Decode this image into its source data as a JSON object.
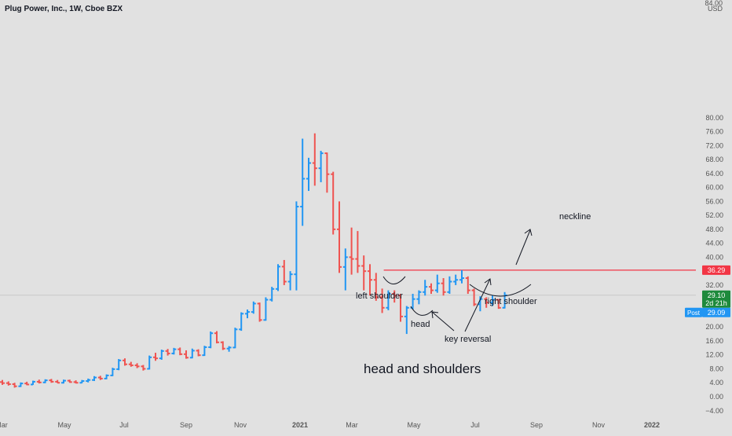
{
  "header": {
    "symbol_line": "Plug Power, Inc., 1W, Cboe BZX"
  },
  "axis": {
    "currency": "USD",
    "y_ticks": [
      "84.00",
      "80.00",
      "76.00",
      "72.00",
      "68.00",
      "64.00",
      "60.00",
      "56.00",
      "52.00",
      "48.00",
      "44.00",
      "40.00",
      "36.00",
      "32.00",
      "28.00",
      "24.00",
      "20.00",
      "16.00",
      "12.00",
      "8.00",
      "4.00",
      "0.00",
      "−4.00"
    ],
    "x_ticks": [
      "Mar",
      "May",
      "Jul",
      "Sep",
      "Nov",
      "2021",
      "Mar",
      "May",
      "Jul",
      "Sep",
      "Nov",
      "2022"
    ]
  },
  "price_labels": {
    "neckline_price": "36.29",
    "last_price": "29.10",
    "countdown": "2d 21h",
    "post_label": "Post",
    "post_price": "29.09"
  },
  "annotations": {
    "neckline": "neckline",
    "left_shoulder": "left shoulder",
    "head": "head",
    "right_shoulder": "right shoulder",
    "key_reversal": "key reversal",
    "pattern_title": "head and shoulders"
  },
  "colors": {
    "up": "#2196f3",
    "down": "#ef5350",
    "neckline": "#f23645",
    "last_price_bg": "#1e8a3c",
    "post_bg": "#2196f3",
    "annotation": "#131722"
  },
  "chart_data": {
    "type": "ohlc",
    "y_range": [
      -4,
      84
    ],
    "neckline_value": 36.29,
    "last_close": 29.1,
    "bars": [
      {
        "o": 4.2,
        "h": 4.8,
        "l": 3.4,
        "c": 3.9
      },
      {
        "o": 3.9,
        "h": 4.4,
        "l": 3.2,
        "c": 3.6
      },
      {
        "o": 3.6,
        "h": 4.0,
        "l": 2.6,
        "c": 3.0
      },
      {
        "o": 3.0,
        "h": 4.1,
        "l": 2.8,
        "c": 3.8
      },
      {
        "o": 3.8,
        "h": 4.3,
        "l": 3.3,
        "c": 3.5
      },
      {
        "o": 3.5,
        "h": 4.6,
        "l": 3.4,
        "c": 4.3
      },
      {
        "o": 4.3,
        "h": 4.9,
        "l": 3.8,
        "c": 4.1
      },
      {
        "o": 4.1,
        "h": 5.0,
        "l": 3.9,
        "c": 4.7
      },
      {
        "o": 4.7,
        "h": 5.1,
        "l": 4.0,
        "c": 4.3
      },
      {
        "o": 4.3,
        "h": 4.8,
        "l": 3.9,
        "c": 4.0
      },
      {
        "o": 4.0,
        "h": 4.9,
        "l": 3.8,
        "c": 4.6
      },
      {
        "o": 4.6,
        "h": 4.9,
        "l": 4.0,
        "c": 4.2
      },
      {
        "o": 4.2,
        "h": 4.7,
        "l": 3.8,
        "c": 4.0
      },
      {
        "o": 4.0,
        "h": 4.8,
        "l": 3.9,
        "c": 4.5
      },
      {
        "o": 4.5,
        "h": 5.2,
        "l": 4.1,
        "c": 4.8
      },
      {
        "o": 4.8,
        "h": 5.9,
        "l": 4.5,
        "c": 5.5
      },
      {
        "o": 5.5,
        "h": 6.0,
        "l": 4.8,
        "c": 5.2
      },
      {
        "o": 5.2,
        "h": 6.4,
        "l": 5.0,
        "c": 6.1
      },
      {
        "o": 6.1,
        "h": 8.3,
        "l": 5.9,
        "c": 7.9
      },
      {
        "o": 7.9,
        "h": 10.8,
        "l": 7.6,
        "c": 10.4
      },
      {
        "o": 10.4,
        "h": 11.0,
        "l": 8.9,
        "c": 9.3
      },
      {
        "o": 9.3,
        "h": 10.0,
        "l": 8.6,
        "c": 9.0
      },
      {
        "o": 9.0,
        "h": 9.6,
        "l": 8.2,
        "c": 8.7
      },
      {
        "o": 8.7,
        "h": 9.1,
        "l": 7.5,
        "c": 8.0
      },
      {
        "o": 8.0,
        "h": 11.8,
        "l": 7.8,
        "c": 11.3
      },
      {
        "o": 11.3,
        "h": 12.6,
        "l": 10.3,
        "c": 11.0
      },
      {
        "o": 11.0,
        "h": 13.5,
        "l": 10.6,
        "c": 13.1
      },
      {
        "o": 13.1,
        "h": 13.7,
        "l": 11.8,
        "c": 12.4
      },
      {
        "o": 12.4,
        "h": 14.0,
        "l": 12.1,
        "c": 13.6
      },
      {
        "o": 13.6,
        "h": 14.1,
        "l": 11.9,
        "c": 12.2
      },
      {
        "o": 12.2,
        "h": 13.3,
        "l": 10.9,
        "c": 11.2
      },
      {
        "o": 11.2,
        "h": 13.8,
        "l": 11.0,
        "c": 13.2
      },
      {
        "o": 13.2,
        "h": 13.6,
        "l": 11.6,
        "c": 11.9
      },
      {
        "o": 11.9,
        "h": 14.6,
        "l": 11.7,
        "c": 14.2
      },
      {
        "o": 14.2,
        "h": 18.7,
        "l": 13.9,
        "c": 18.2
      },
      {
        "o": 18.2,
        "h": 18.8,
        "l": 15.3,
        "c": 15.6
      },
      {
        "o": 15.6,
        "h": 15.9,
        "l": 13.4,
        "c": 13.8
      },
      {
        "o": 13.8,
        "h": 14.5,
        "l": 12.9,
        "c": 14.1
      },
      {
        "o": 14.1,
        "h": 19.8,
        "l": 13.9,
        "c": 19.3
      },
      {
        "o": 19.3,
        "h": 24.2,
        "l": 18.9,
        "c": 23.8
      },
      {
        "o": 23.8,
        "h": 25.0,
        "l": 22.5,
        "c": 24.3
      },
      {
        "o": 24.3,
        "h": 27.3,
        "l": 23.8,
        "c": 26.7
      },
      {
        "o": 26.7,
        "h": 27.0,
        "l": 21.5,
        "c": 22.0
      },
      {
        "o": 22.0,
        "h": 28.5,
        "l": 21.8,
        "c": 27.8
      },
      {
        "o": 27.8,
        "h": 31.5,
        "l": 27.3,
        "c": 30.9
      },
      {
        "o": 30.9,
        "h": 38.0,
        "l": 30.3,
        "c": 37.3
      },
      {
        "o": 37.3,
        "h": 39.2,
        "l": 32.0,
        "c": 33.0
      },
      {
        "o": 33.0,
        "h": 36.0,
        "l": 30.5,
        "c": 35.1
      },
      {
        "o": 35.1,
        "h": 56.0,
        "l": 30.5,
        "c": 54.5
      },
      {
        "o": 54.5,
        "h": 74.0,
        "l": 49.0,
        "c": 62.5
      },
      {
        "o": 62.5,
        "h": 68.5,
        "l": 59.0,
        "c": 67.0
      },
      {
        "o": 67.0,
        "h": 75.5,
        "l": 60.5,
        "c": 65.5
      },
      {
        "o": 65.5,
        "h": 70.5,
        "l": 61.5,
        "c": 69.8
      },
      {
        "o": 69.8,
        "h": 70.0,
        "l": 58.5,
        "c": 63.8
      },
      {
        "o": 63.8,
        "h": 64.5,
        "l": 46.5,
        "c": 48.0
      },
      {
        "o": 48.0,
        "h": 56.0,
        "l": 35.5,
        "c": 37.2
      },
      {
        "o": 37.2,
        "h": 42.5,
        "l": 30.5,
        "c": 40.0
      },
      {
        "o": 40.0,
        "h": 48.5,
        "l": 35.0,
        "c": 39.5
      },
      {
        "o": 39.5,
        "h": 47.5,
        "l": 35.5,
        "c": 37.5
      },
      {
        "o": 37.5,
        "h": 40.5,
        "l": 30.5,
        "c": 36.0
      },
      {
        "o": 36.0,
        "h": 38.0,
        "l": 29.0,
        "c": 33.5
      },
      {
        "o": 33.5,
        "h": 35.5,
        "l": 27.5,
        "c": 28.5
      },
      {
        "o": 28.5,
        "h": 31.0,
        "l": 24.0,
        "c": 25.5
      },
      {
        "o": 25.5,
        "h": 30.5,
        "l": 24.8,
        "c": 29.5
      },
      {
        "o": 29.5,
        "h": 30.5,
        "l": 27.0,
        "c": 29.0
      },
      {
        "o": 29.0,
        "h": 29.5,
        "l": 21.5,
        "c": 23.0
      },
      {
        "o": 23.0,
        "h": 26.0,
        "l": 18.0,
        "c": 25.5
      },
      {
        "o": 25.5,
        "h": 29.5,
        "l": 25.0,
        "c": 28.0
      },
      {
        "o": 28.0,
        "h": 30.5,
        "l": 26.5,
        "c": 30.0
      },
      {
        "o": 30.0,
        "h": 33.5,
        "l": 29.0,
        "c": 31.5
      },
      {
        "o": 31.5,
        "h": 32.5,
        "l": 29.5,
        "c": 30.5
      },
      {
        "o": 30.5,
        "h": 35.0,
        "l": 29.8,
        "c": 32.5
      },
      {
        "o": 32.5,
        "h": 34.0,
        "l": 29.0,
        "c": 30.0
      },
      {
        "o": 30.0,
        "h": 34.5,
        "l": 29.5,
        "c": 33.0
      },
      {
        "o": 33.0,
        "h": 35.0,
        "l": 32.0,
        "c": 33.5
      },
      {
        "o": 33.5,
        "h": 36.3,
        "l": 32.5,
        "c": 34.0
      },
      {
        "o": 34.0,
        "h": 34.5,
        "l": 29.5,
        "c": 30.5
      },
      {
        "o": 30.5,
        "h": 31.0,
        "l": 26.0,
        "c": 26.5
      },
      {
        "o": 26.5,
        "h": 28.8,
        "l": 24.5,
        "c": 28.0
      },
      {
        "o": 28.0,
        "h": 28.5,
        "l": 25.5,
        "c": 27.0
      },
      {
        "o": 27.0,
        "h": 29.0,
        "l": 26.0,
        "c": 27.8
      },
      {
        "o": 27.8,
        "h": 28.0,
        "l": 25.2,
        "c": 25.5
      },
      {
        "o": 25.5,
        "h": 30.0,
        "l": 25.3,
        "c": 29.1
      }
    ]
  }
}
